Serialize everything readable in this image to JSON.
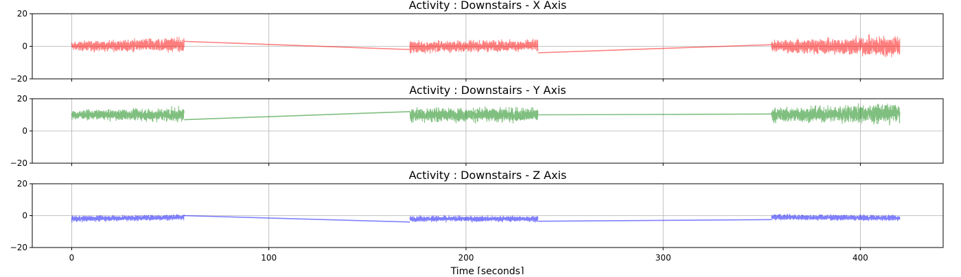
{
  "figure": {
    "xlabel": "Time [seconds]"
  },
  "chart_data": [
    {
      "type": "line",
      "title": "Activity : Downstairs - X Axis",
      "xlabel": "",
      "ylabel": "",
      "xlim": [
        -20,
        442
      ],
      "ylim": [
        -20,
        20
      ],
      "xticks": [
        0,
        100,
        200,
        300,
        400
      ],
      "yticks": [
        -20,
        0,
        20
      ],
      "grid": true,
      "color": "#ff0000",
      "segments": [
        {
          "x_start": 0,
          "x_end": 57,
          "mean_start": 0,
          "mean_end": 1,
          "amp_start": 3,
          "amp_end": 5
        },
        {
          "x_start": 171.5,
          "x_end": 236.5,
          "mean_start": -0.5,
          "mean_end": 0.5,
          "amp_start": 4,
          "amp_end": 4
        },
        {
          "x_start": 355,
          "x_end": 420,
          "mean_start": 0,
          "mean_end": 0,
          "amp_start": 4,
          "amp_end": 8
        }
      ],
      "connectors": [
        {
          "x": [
            57,
            171.5
          ],
          "y": [
            3,
            -2
          ]
        },
        {
          "x": [
            236.5,
            355
          ],
          "y": [
            -4,
            1
          ]
        }
      ]
    },
    {
      "type": "line",
      "title": "Activity : Downstairs - Y Axis",
      "xlabel": "",
      "ylabel": "",
      "xlim": [
        -20,
        442
      ],
      "ylim": [
        -20,
        20
      ],
      "xticks": [
        0,
        100,
        200,
        300,
        400
      ],
      "yticks": [
        -20,
        0,
        20
      ],
      "grid": true,
      "color": "#008000",
      "segments": [
        {
          "x_start": 0,
          "x_end": 57,
          "mean_start": 10,
          "mean_end": 10,
          "amp_start": 3,
          "amp_end": 5
        },
        {
          "x_start": 171.5,
          "x_end": 236.5,
          "mean_start": 10,
          "mean_end": 10,
          "amp_start": 5,
          "amp_end": 5
        },
        {
          "x_start": 355,
          "x_end": 420,
          "mean_start": 10,
          "mean_end": 11,
          "amp_start": 5,
          "amp_end": 7
        }
      ],
      "connectors": [
        {
          "x": [
            57,
            171.5
          ],
          "y": [
            7,
            12
          ]
        },
        {
          "x": [
            236.5,
            355
          ],
          "y": [
            10,
            10.5
          ]
        }
      ]
    },
    {
      "type": "line",
      "title": "Activity : Downstairs - Z Axis",
      "xlabel": "Time [seconds]",
      "ylabel": "",
      "xlim": [
        -20,
        442
      ],
      "ylim": [
        -20,
        20
      ],
      "xticks": [
        0,
        100,
        200,
        300,
        400
      ],
      "yticks": [
        -20,
        0,
        20
      ],
      "grid": true,
      "color": "#0000ff",
      "segments": [
        {
          "x_start": 0,
          "x_end": 57,
          "mean_start": -2,
          "mean_end": -1,
          "amp_start": 2,
          "amp_end": 2
        },
        {
          "x_start": 171.5,
          "x_end": 236.5,
          "mean_start": -2,
          "mean_end": -2,
          "amp_start": 2,
          "amp_end": 2
        },
        {
          "x_start": 355,
          "x_end": 420,
          "mean_start": -1,
          "mean_end": -1.5,
          "amp_start": 2,
          "amp_end": 2
        }
      ],
      "connectors": [
        {
          "x": [
            57,
            171.5
          ],
          "y": [
            0,
            -4
          ]
        },
        {
          "x": [
            236.5,
            355
          ],
          "y": [
            -3.5,
            -2.5
          ]
        }
      ]
    }
  ]
}
